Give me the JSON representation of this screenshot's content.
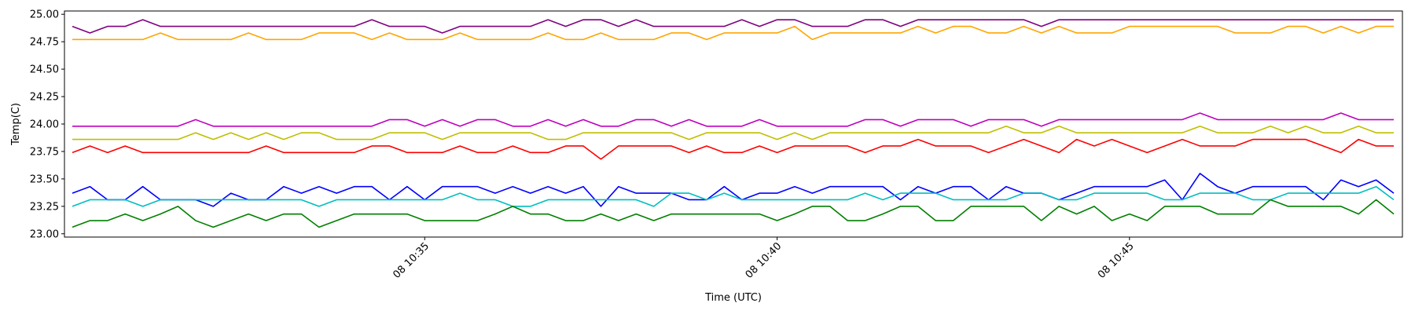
{
  "chart_data": {
    "type": "line",
    "title": "",
    "xlabel": "Time (UTC)",
    "ylabel": "Temp(C)",
    "xlim": [
      "10:30:00",
      "10:48:45"
    ],
    "ylim": [
      22.97,
      25.03
    ],
    "grid": false,
    "x": [
      "10:30:00",
      "10:30:15",
      "10:30:30",
      "10:30:45",
      "10:31:00",
      "10:31:15",
      "10:31:30",
      "10:31:45",
      "10:32:00",
      "10:32:15",
      "10:32:30",
      "10:32:45",
      "10:33:00",
      "10:33:15",
      "10:33:30",
      "10:33:45",
      "10:34:00",
      "10:34:15",
      "10:34:30",
      "10:34:45",
      "10:35:00",
      "10:35:15",
      "10:35:30",
      "10:35:45",
      "10:36:00",
      "10:36:15",
      "10:36:30",
      "10:36:45",
      "10:37:00",
      "10:37:15",
      "10:37:30",
      "10:37:45",
      "10:38:00",
      "10:38:15",
      "10:38:30",
      "10:38:45",
      "10:39:00",
      "10:39:15",
      "10:39:30",
      "10:39:45",
      "10:40:00",
      "10:40:15",
      "10:40:30",
      "10:40:45",
      "10:41:00",
      "10:41:15",
      "10:41:30",
      "10:41:45",
      "10:42:00",
      "10:42:15",
      "10:42:30",
      "10:42:45",
      "10:43:00",
      "10:43:15",
      "10:43:30",
      "10:43:45",
      "10:44:00",
      "10:44:15",
      "10:44:30",
      "10:44:45",
      "10:45:00",
      "10:45:15",
      "10:45:30",
      "10:45:45",
      "10:46:00",
      "10:46:15",
      "10:46:30",
      "10:46:45",
      "10:47:00",
      "10:47:15",
      "10:47:30",
      "10:47:45",
      "10:48:00",
      "10:48:15",
      "10:48:30",
      "10:48:45"
    ],
    "xticks": [
      {
        "label": "08 10:35",
        "x": "10:35:00"
      },
      {
        "label": "08 10:40",
        "x": "10:40:00"
      },
      {
        "label": "08 10:45",
        "x": "10:45:00"
      }
    ],
    "yticks": [
      "23.00",
      "23.25",
      "23.50",
      "23.75",
      "24.00",
      "24.25",
      "24.50",
      "24.75",
      "25.00"
    ],
    "series": [
      {
        "color": "#800080",
        "values": [
          24.89,
          24.83,
          24.89,
          24.89,
          24.95,
          24.89,
          24.89,
          24.89,
          24.89,
          24.89,
          24.89,
          24.89,
          24.89,
          24.89,
          24.89,
          24.89,
          24.89,
          24.95,
          24.89,
          24.89,
          24.89,
          24.83,
          24.89,
          24.89,
          24.89,
          24.89,
          24.89,
          24.95,
          24.89,
          24.95,
          24.95,
          24.89,
          24.95,
          24.89,
          24.89,
          24.89,
          24.89,
          24.89,
          24.95,
          24.89,
          24.95,
          24.95,
          24.89,
          24.89,
          24.89,
          24.95,
          24.95,
          24.89,
          24.95,
          24.95,
          24.95,
          24.95,
          24.95,
          24.95,
          24.95,
          24.89,
          24.95,
          24.95,
          24.95,
          24.95,
          24.95,
          24.95,
          24.95,
          24.95,
          24.95,
          24.95,
          24.95,
          24.95,
          24.95,
          24.95,
          24.95,
          24.95,
          24.95,
          24.95,
          24.95,
          24.95
        ]
      },
      {
        "color": "#ffa500",
        "values": [
          24.77,
          24.77,
          24.77,
          24.77,
          24.77,
          24.83,
          24.77,
          24.77,
          24.77,
          24.77,
          24.83,
          24.77,
          24.77,
          24.77,
          24.83,
          24.83,
          24.83,
          24.77,
          24.83,
          24.77,
          24.77,
          24.77,
          24.83,
          24.77,
          24.77,
          24.77,
          24.77,
          24.83,
          24.77,
          24.77,
          24.83,
          24.77,
          24.77,
          24.77,
          24.83,
          24.83,
          24.77,
          24.83,
          24.83,
          24.83,
          24.83,
          24.89,
          24.77,
          24.83,
          24.83,
          24.83,
          24.83,
          24.83,
          24.89,
          24.83,
          24.89,
          24.89,
          24.83,
          24.83,
          24.89,
          24.83,
          24.89,
          24.83,
          24.83,
          24.83,
          24.89,
          24.89,
          24.89,
          24.89,
          24.89,
          24.89,
          24.83,
          24.83,
          24.83,
          24.89,
          24.89,
          24.83,
          24.89,
          24.83,
          24.89,
          24.89
        ]
      },
      {
        "color": "#bf00bf",
        "values": [
          23.98,
          23.98,
          23.98,
          23.98,
          23.98,
          23.98,
          23.98,
          24.04,
          23.98,
          23.98,
          23.98,
          23.98,
          23.98,
          23.98,
          23.98,
          23.98,
          23.98,
          23.98,
          24.04,
          24.04,
          23.98,
          24.04,
          23.98,
          24.04,
          24.04,
          23.98,
          23.98,
          24.04,
          23.98,
          24.04,
          23.98,
          23.98,
          24.04,
          24.04,
          23.98,
          24.04,
          23.98,
          23.98,
          23.98,
          24.04,
          23.98,
          23.98,
          23.98,
          23.98,
          23.98,
          24.04,
          24.04,
          23.98,
          24.04,
          24.04,
          24.04,
          23.98,
          24.04,
          24.04,
          24.04,
          23.98,
          24.04,
          24.04,
          24.04,
          24.04,
          24.04,
          24.04,
          24.04,
          24.04,
          24.1,
          24.04,
          24.04,
          24.04,
          24.04,
          24.04,
          24.04,
          24.04,
          24.1,
          24.04,
          24.04,
          24.04
        ]
      },
      {
        "color": "#bfbf00",
        "values": [
          23.86,
          23.86,
          23.86,
          23.86,
          23.86,
          23.86,
          23.86,
          23.92,
          23.86,
          23.92,
          23.86,
          23.92,
          23.86,
          23.92,
          23.92,
          23.86,
          23.86,
          23.86,
          23.92,
          23.92,
          23.92,
          23.86,
          23.92,
          23.92,
          23.92,
          23.92,
          23.92,
          23.86,
          23.86,
          23.92,
          23.92,
          23.92,
          23.92,
          23.92,
          23.92,
          23.86,
          23.92,
          23.92,
          23.92,
          23.92,
          23.86,
          23.92,
          23.86,
          23.92,
          23.92,
          23.92,
          23.92,
          23.92,
          23.92,
          23.92,
          23.92,
          23.92,
          23.92,
          23.98,
          23.92,
          23.92,
          23.98,
          23.92,
          23.92,
          23.92,
          23.92,
          23.92,
          23.92,
          23.92,
          23.98,
          23.92,
          23.92,
          23.92,
          23.98,
          23.92,
          23.98,
          23.92,
          23.92,
          23.98,
          23.92,
          23.92
        ]
      },
      {
        "color": "#ff0000",
        "values": [
          23.74,
          23.8,
          23.74,
          23.8,
          23.74,
          23.74,
          23.74,
          23.74,
          23.74,
          23.74,
          23.74,
          23.8,
          23.74,
          23.74,
          23.74,
          23.74,
          23.74,
          23.8,
          23.8,
          23.74,
          23.74,
          23.74,
          23.8,
          23.74,
          23.74,
          23.8,
          23.74,
          23.74,
          23.8,
          23.8,
          23.68,
          23.8,
          23.8,
          23.8,
          23.8,
          23.74,
          23.8,
          23.74,
          23.74,
          23.8,
          23.74,
          23.8,
          23.8,
          23.8,
          23.8,
          23.74,
          23.8,
          23.8,
          23.86,
          23.8,
          23.8,
          23.8,
          23.74,
          23.8,
          23.86,
          23.8,
          23.74,
          23.86,
          23.8,
          23.86,
          23.8,
          23.74,
          23.8,
          23.86,
          23.8,
          23.8,
          23.8,
          23.86,
          23.86,
          23.86,
          23.86,
          23.8,
          23.74,
          23.86,
          23.8,
          23.8
        ]
      },
      {
        "color": "#0000ff",
        "values": [
          23.37,
          23.43,
          23.31,
          23.31,
          23.43,
          23.31,
          23.31,
          23.31,
          23.25,
          23.37,
          23.31,
          23.31,
          23.43,
          23.37,
          23.43,
          23.37,
          23.43,
          23.43,
          23.31,
          23.43,
          23.31,
          23.43,
          23.43,
          23.43,
          23.37,
          23.43,
          23.37,
          23.43,
          23.37,
          23.43,
          23.25,
          23.43,
          23.37,
          23.37,
          23.37,
          23.31,
          23.31,
          23.43,
          23.31,
          23.37,
          23.37,
          23.43,
          23.37,
          23.43,
          23.43,
          23.43,
          23.43,
          23.31,
          23.43,
          23.37,
          23.43,
          23.43,
          23.31,
          23.43,
          23.37,
          23.37,
          23.31,
          23.37,
          23.43,
          23.43,
          23.43,
          23.43,
          23.49,
          23.31,
          23.55,
          23.43,
          23.37,
          23.43,
          23.43,
          23.43,
          23.43,
          23.31,
          23.49,
          23.43,
          23.49,
          23.37
        ]
      },
      {
        "color": "#00bfbf",
        "values": [
          23.25,
          23.31,
          23.31,
          23.31,
          23.25,
          23.31,
          23.31,
          23.31,
          23.31,
          23.31,
          23.31,
          23.31,
          23.31,
          23.31,
          23.25,
          23.31,
          23.31,
          23.31,
          23.31,
          23.31,
          23.31,
          23.31,
          23.37,
          23.31,
          23.31,
          23.25,
          23.25,
          23.31,
          23.31,
          23.31,
          23.31,
          23.31,
          23.31,
          23.25,
          23.37,
          23.37,
          23.31,
          23.37,
          23.31,
          23.31,
          23.31,
          23.31,
          23.31,
          23.31,
          23.31,
          23.37,
          23.31,
          23.37,
          23.37,
          23.37,
          23.31,
          23.31,
          23.31,
          23.31,
          23.37,
          23.37,
          23.31,
          23.31,
          23.37,
          23.37,
          23.37,
          23.37,
          23.31,
          23.31,
          23.37,
          23.37,
          23.37,
          23.31,
          23.31,
          23.37,
          23.37,
          23.37,
          23.37,
          23.37,
          23.43,
          23.31
        ]
      },
      {
        "color": "#008000",
        "values": [
          23.06,
          23.12,
          23.12,
          23.18,
          23.12,
          23.18,
          23.25,
          23.12,
          23.06,
          23.12,
          23.18,
          23.12,
          23.18,
          23.18,
          23.06,
          23.12,
          23.18,
          23.18,
          23.18,
          23.18,
          23.12,
          23.12,
          23.12,
          23.12,
          23.18,
          23.25,
          23.18,
          23.18,
          23.12,
          23.12,
          23.18,
          23.12,
          23.18,
          23.12,
          23.18,
          23.18,
          23.18,
          23.18,
          23.18,
          23.18,
          23.12,
          23.18,
          23.25,
          23.25,
          23.12,
          23.12,
          23.18,
          23.25,
          23.25,
          23.12,
          23.12,
          23.25,
          23.25,
          23.25,
          23.25,
          23.12,
          23.25,
          23.18,
          23.25,
          23.12,
          23.18,
          23.12,
          23.25,
          23.25,
          23.25,
          23.18,
          23.18,
          23.18,
          23.31,
          23.25,
          23.25,
          23.25,
          23.25,
          23.18,
          23.31,
          23.18
        ]
      }
    ]
  }
}
